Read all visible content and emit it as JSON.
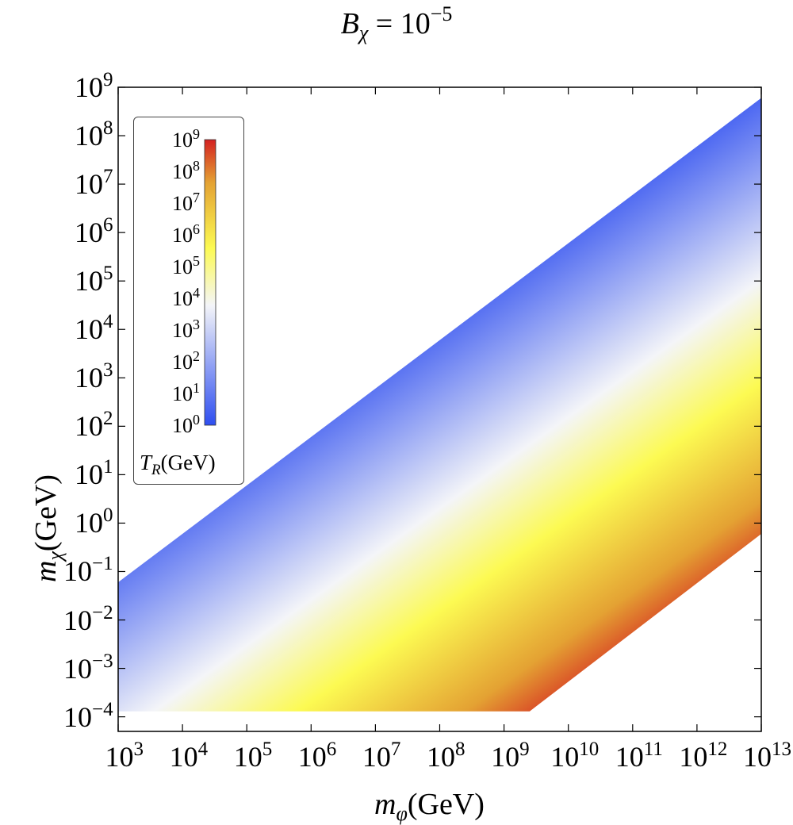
{
  "chart_data": {
    "type": "heatmap",
    "title": "B_χ = 10^-5",
    "title_parts": {
      "base": "B",
      "sub": "χ",
      "eq": " = 10",
      "exp": "−5"
    },
    "xlabel": "m_φ(GeV)",
    "xlabel_parts": {
      "var": "m",
      "sub": "φ",
      "unit": "(GeV)"
    },
    "ylabel": "m_χ(GeV)",
    "ylabel_parts": {
      "var": "m",
      "sub": "χ",
      "unit": "(GeV)"
    },
    "x_scale": "log",
    "y_scale": "log",
    "xlim": [
      1000,
      10000000000000.0
    ],
    "ylim": [
      5e-05,
      1000000000.0
    ],
    "x_ticks": [
      1000.0,
      10000.0,
      100000.0,
      1000000.0,
      10000000.0,
      100000000.0,
      1000000000.0,
      10000000000.0,
      100000000000.0,
      1000000000000.0,
      10000000000000.0
    ],
    "x_tick_exponents": [
      "3",
      "4",
      "5",
      "6",
      "7",
      "8",
      "9",
      "10",
      "11",
      "12",
      "13"
    ],
    "y_ticks": [
      0.0001,
      0.001,
      0.01,
      0.1,
      1.0,
      10.0,
      100.0,
      1000.0,
      10000.0,
      100000.0,
      1000000.0,
      10000000.0,
      100000000.0,
      1000000000.0
    ],
    "y_tick_exponents": [
      "−4",
      "−3",
      "−2",
      "−1",
      "0",
      "1",
      "2",
      "3",
      "4",
      "5",
      "6",
      "7",
      "8",
      "9"
    ],
    "region_vertices": [
      {
        "x": 1000,
        "y": 0.06
      },
      {
        "x": 10000000000000.0,
        "y": 600000000.0
      },
      {
        "x": 10000000000000.0,
        "y": 0.6
      },
      {
        "x": 2500000000.0,
        "y": 0.00013
      },
      {
        "x": 1000,
        "y": 0.00013
      }
    ],
    "color_variable": "T_R(GeV)",
    "colorbar": {
      "title_var": "T",
      "title_sub": "R",
      "title_unit": "(GeV)",
      "range": [
        1,
        1000000000.0
      ],
      "tick_exponents": [
        "0",
        "1",
        "2",
        "3",
        "4",
        "5",
        "6",
        "7",
        "8",
        "9"
      ],
      "colors": [
        "#2e4ef0",
        "#f4f5f8",
        "#fcfa52",
        "#e4a233",
        "#d42121"
      ],
      "color_stops": [
        0,
        0.42,
        0.62,
        0.85,
        1.0
      ]
    },
    "colorbar_placement": "top-left inside plot",
    "grid": false
  }
}
